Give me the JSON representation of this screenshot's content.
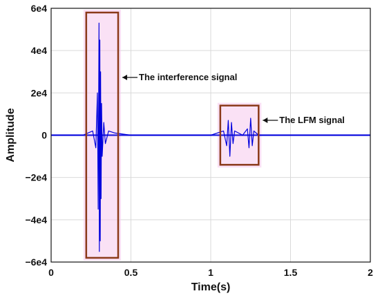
{
  "chart_data": {
    "type": "line",
    "xlabel": "Time(s)",
    "ylabel": "Amplitude",
    "xlim": [
      0,
      2
    ],
    "ylim": [
      -60000,
      60000
    ],
    "x_ticks": [
      0,
      0.5,
      1,
      1.5,
      2
    ],
    "x_tick_labels": [
      "0",
      "0.5",
      "1",
      "1.5",
      "2"
    ],
    "y_ticks": [
      60000,
      40000,
      20000,
      0,
      -20000,
      -40000,
      -60000
    ],
    "y_tick_labels": [
      "6e4",
      "4e4",
      "2e4",
      "0",
      "−2e4",
      "−4e4",
      "−6e4"
    ],
    "grid": true,
    "series": [
      {
        "color": "#0000dd",
        "x": [
          0,
          0.2,
          0.26,
          0.28,
          0.29,
          0.295,
          0.3,
          0.302,
          0.305,
          0.308,
          0.31,
          0.313,
          0.316,
          0.32,
          0.33,
          0.34,
          0.36,
          0.4,
          0.5,
          1.0,
          1.08,
          1.1,
          1.11,
          1.12,
          1.13,
          1.14,
          1.15,
          1.2,
          1.23,
          1.24,
          1.25,
          1.26,
          1.27,
          1.3,
          2.0
        ],
        "y": [
          0,
          0,
          2000,
          -6000,
          20000,
          -35000,
          53000,
          -55000,
          45000,
          -50000,
          30000,
          -30000,
          15000,
          -10000,
          6000,
          -4000,
          2000,
          1000,
          0,
          0,
          2000,
          -5000,
          7000,
          -10000,
          6000,
          -4000,
          2000,
          0,
          3000,
          -6000,
          8000,
          -5000,
          2000,
          0,
          0
        ]
      }
    ],
    "annotations": [
      {
        "text": "The interference signal",
        "box_x": [
          0.22,
          0.42
        ],
        "box_y": [
          -58000,
          58000
        ]
      },
      {
        "text": "The LFM signal",
        "box_x": [
          1.06,
          1.3
        ],
        "box_y": [
          -14000,
          14000
        ]
      }
    ],
    "colors": {
      "signal": "#0000dd",
      "box": "#8b3a1a",
      "box_glow": "#f5c8ec",
      "grid": "#d9d9d9"
    }
  }
}
